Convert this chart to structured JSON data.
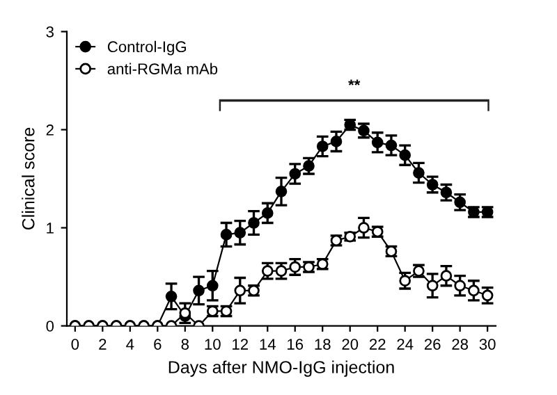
{
  "chart_data": {
    "type": "line",
    "xlabel": "Days after NMO-IgG injection",
    "ylabel": "Clinical score",
    "x": [
      0,
      1,
      2,
      3,
      4,
      5,
      6,
      7,
      8,
      9,
      10,
      11,
      12,
      13,
      14,
      15,
      16,
      17,
      18,
      19,
      20,
      21,
      22,
      23,
      24,
      25,
      26,
      27,
      28,
      29,
      30
    ],
    "series": [
      {
        "name": "Control-IgG",
        "color": "#000000",
        "values": [
          0,
          0,
          0,
          0,
          0,
          0,
          0,
          0.3,
          0.1,
          0.36,
          0.41,
          0.93,
          0.95,
          1.05,
          1.15,
          1.37,
          1.55,
          1.63,
          1.83,
          1.88,
          2.05,
          1.99,
          1.87,
          1.84,
          1.74,
          1.56,
          1.44,
          1.36,
          1.26,
          1.16,
          1.16
        ],
        "errors": [
          null,
          null,
          null,
          null,
          null,
          null,
          null,
          0.13,
          null,
          0.14,
          0.15,
          0.12,
          0.12,
          0.12,
          0.1,
          0.14,
          0.1,
          0.08,
          0.1,
          0.1,
          0.05,
          0.07,
          0.1,
          0.1,
          0.1,
          0.1,
          0.08,
          0.08,
          0.08,
          0.05,
          0.05
        ]
      },
      {
        "name": "anti-RGMa mAb",
        "color": "#000000",
        "values": [
          0,
          0,
          0,
          0,
          0,
          0,
          0,
          0,
          0.13,
          0,
          0.15,
          0.15,
          0.36,
          0.36,
          0.56,
          0.56,
          0.6,
          0.6,
          0.63,
          0.87,
          0.91,
          1.0,
          0.96,
          0.76,
          0.46,
          0.56,
          0.41,
          0.51,
          0.41,
          0.36,
          0.31
        ],
        "errors": [
          null,
          null,
          null,
          null,
          null,
          null,
          null,
          null,
          0.1,
          null,
          0.05,
          0.05,
          0.13,
          0.05,
          0.08,
          0.08,
          0.08,
          0.05,
          0.05,
          0.05,
          0.04,
          0.1,
          0.05,
          0.05,
          0.08,
          0.06,
          0.12,
          0.1,
          0.1,
          0.1,
          0.08
        ]
      }
    ],
    "xlim": [
      -0.6,
      30.6
    ],
    "xticks": [
      0,
      2,
      4,
      6,
      8,
      10,
      12,
      14,
      16,
      18,
      20,
      22,
      24,
      26,
      28,
      30
    ],
    "ylim": [
      0,
      3
    ],
    "yticks": [
      0,
      1,
      2,
      3
    ],
    "annotations": [
      "**"
    ],
    "legend": "top left",
    "grid": false,
    "marker": "circle",
    "line_style": "solid"
  }
}
